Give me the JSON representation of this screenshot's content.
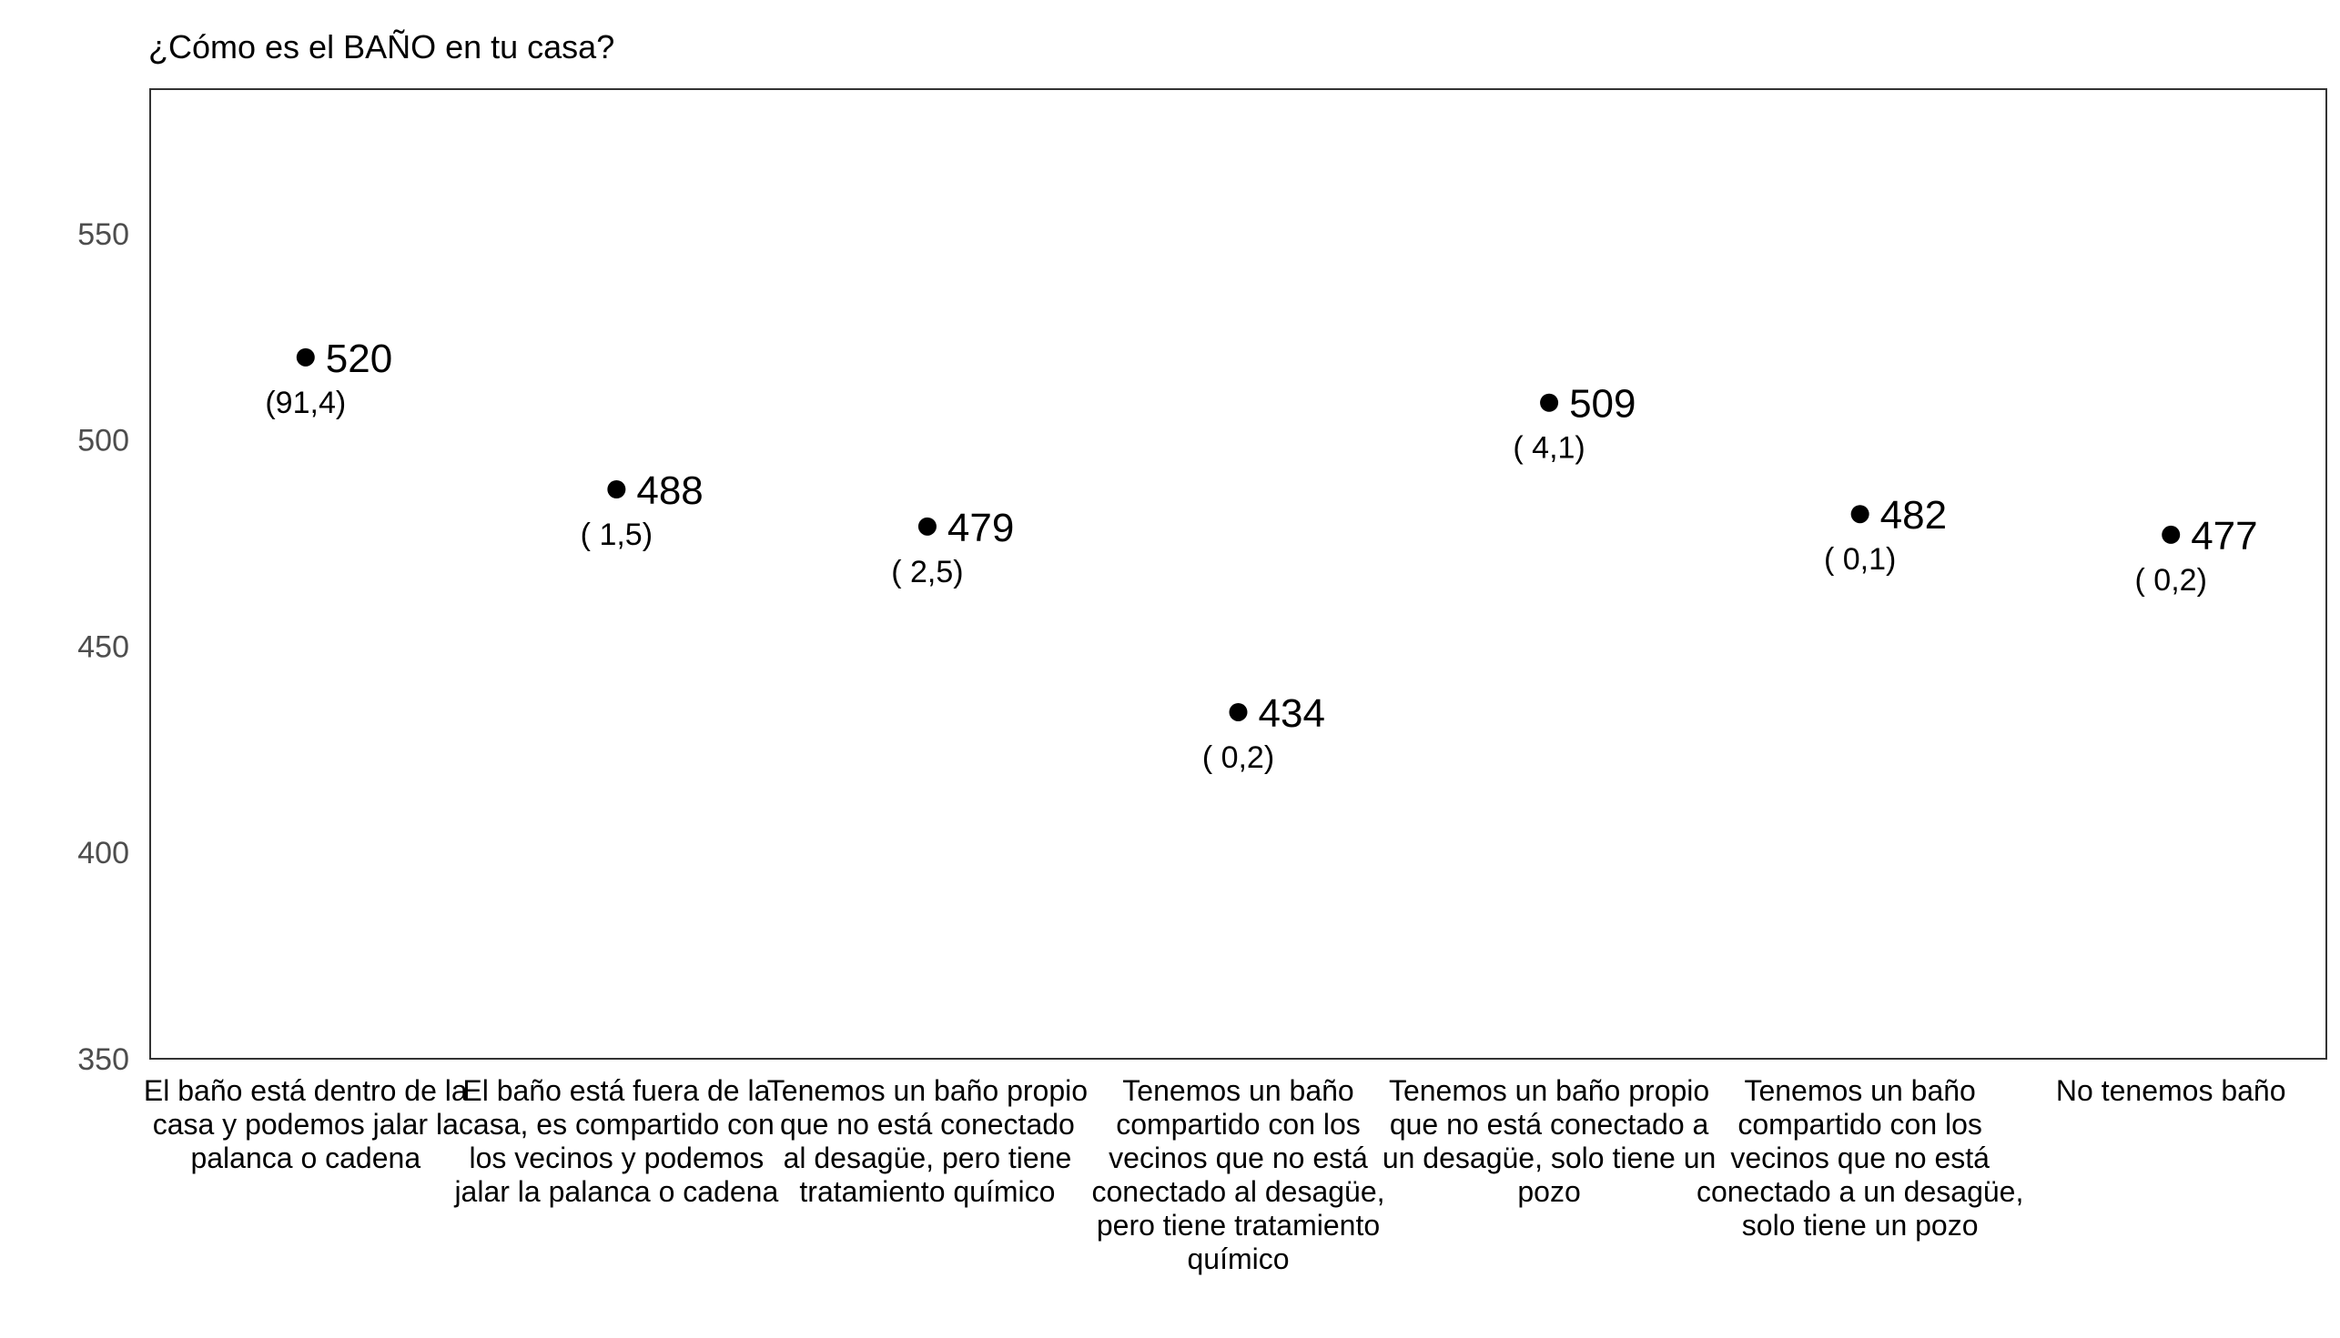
{
  "chart_data": {
    "type": "scatter",
    "title": "¿Cómo es el BAÑO en tu casa?",
    "xlabel": "",
    "ylabel": "",
    "ylim": [
      350,
      585
    ],
    "yticks": [
      "350",
      "400",
      "450",
      "500",
      "550"
    ],
    "grid": false,
    "categories": [
      [
        "El baño está dentro de la",
        "casa y podemos jalar la",
        "palanca o cadena"
      ],
      [
        "El baño está fuera de la",
        "casa, es compartido con",
        "los vecinos y podemos",
        "jalar la palanca o cadena"
      ],
      [
        "Tenemos un baño propio",
        "que no está conectado",
        "al desagüe, pero tiene",
        "tratamiento químico"
      ],
      [
        "Tenemos un baño",
        "compartido con los",
        "vecinos que no está",
        "conectado al desagüe,",
        "pero tiene tratamiento",
        "químico"
      ],
      [
        "Tenemos un baño propio",
        "que no está conectado a",
        "un desagüe, solo tiene un",
        "pozo"
      ],
      [
        "Tenemos un baño",
        "compartido con los",
        "vecinos que no está",
        "conectado a un desagüe,",
        "solo tiene un pozo"
      ],
      [
        "No tenemos baño"
      ]
    ],
    "values": [
      520,
      488,
      479,
      434,
      509,
      482,
      477
    ],
    "value_labels": [
      "520",
      "488",
      "479",
      "434",
      "509",
      "482",
      "477"
    ],
    "percent_labels": [
      "(91,4)",
      "( 1,5)",
      "( 2,5)",
      "( 0,2)",
      "( 4,1)",
      "( 0,1)",
      "( 0,2)"
    ],
    "marker_color": "#000000"
  }
}
